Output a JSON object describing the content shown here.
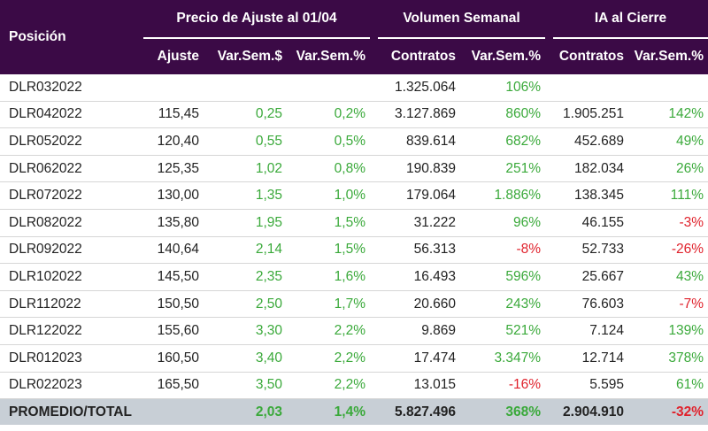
{
  "header": {
    "posicion": "Posición",
    "group_precio": "Precio de Ajuste al 01/04",
    "group_volumen": "Volumen Semanal",
    "group_ia": "IA al Cierre",
    "sub": [
      "Ajuste",
      "Var.Sem.$",
      "Var.Sem.%",
      "Contratos",
      "Var.Sem.%",
      "Contratos",
      "Var.Sem.%"
    ]
  },
  "colors": {
    "header_bg": "#3b0a46",
    "positive": "#3aa93a",
    "negative": "#e0222c",
    "total_bg": "#c8cfd6"
  },
  "rows": [
    {
      "posicion": "DLR032022",
      "ajuste": "",
      "var_usd": "",
      "var_pct": "",
      "vol_contratos": "1.325.064",
      "vol_var": "106%",
      "ia_contratos": "",
      "ia_var": ""
    },
    {
      "posicion": "DLR042022",
      "ajuste": "115,45",
      "var_usd": "0,25",
      "var_pct": "0,2%",
      "vol_contratos": "3.127.869",
      "vol_var": "860%",
      "ia_contratos": "1.905.251",
      "ia_var": "142%"
    },
    {
      "posicion": "DLR052022",
      "ajuste": "120,40",
      "var_usd": "0,55",
      "var_pct": "0,5%",
      "vol_contratos": "839.614",
      "vol_var": "682%",
      "ia_contratos": "452.689",
      "ia_var": "49%"
    },
    {
      "posicion": "DLR062022",
      "ajuste": "125,35",
      "var_usd": "1,02",
      "var_pct": "0,8%",
      "vol_contratos": "190.839",
      "vol_var": "251%",
      "ia_contratos": "182.034",
      "ia_var": "26%"
    },
    {
      "posicion": "DLR072022",
      "ajuste": "130,00",
      "var_usd": "1,35",
      "var_pct": "1,0%",
      "vol_contratos": "179.064",
      "vol_var": "1.886%",
      "ia_contratos": "138.345",
      "ia_var": "111%"
    },
    {
      "posicion": "DLR082022",
      "ajuste": "135,80",
      "var_usd": "1,95",
      "var_pct": "1,5%",
      "vol_contratos": "31.222",
      "vol_var": "96%",
      "ia_contratos": "46.155",
      "ia_var": "-3%"
    },
    {
      "posicion": "DLR092022",
      "ajuste": "140,64",
      "var_usd": "2,14",
      "var_pct": "1,5%",
      "vol_contratos": "56.313",
      "vol_var": "-8%",
      "ia_contratos": "52.733",
      "ia_var": "-26%"
    },
    {
      "posicion": "DLR102022",
      "ajuste": "145,50",
      "var_usd": "2,35",
      "var_pct": "1,6%",
      "vol_contratos": "16.493",
      "vol_var": "596%",
      "ia_contratos": "25.667",
      "ia_var": "43%"
    },
    {
      "posicion": "DLR112022",
      "ajuste": "150,50",
      "var_usd": "2,50",
      "var_pct": "1,7%",
      "vol_contratos": "20.660",
      "vol_var": "243%",
      "ia_contratos": "76.603",
      "ia_var": "-7%"
    },
    {
      "posicion": "DLR122022",
      "ajuste": "155,60",
      "var_usd": "3,30",
      "var_pct": "2,2%",
      "vol_contratos": "9.869",
      "vol_var": "521%",
      "ia_contratos": "7.124",
      "ia_var": "139%"
    },
    {
      "posicion": "DLR012023",
      "ajuste": "160,50",
      "var_usd": "3,40",
      "var_pct": "2,2%",
      "vol_contratos": "17.474",
      "vol_var": "3.347%",
      "ia_contratos": "12.714",
      "ia_var": "378%"
    },
    {
      "posicion": "DLR022023",
      "ajuste": "165,50",
      "var_usd": "3,50",
      "var_pct": "2,2%",
      "vol_contratos": "13.015",
      "vol_var": "-16%",
      "ia_contratos": "5.595",
      "ia_var": "61%"
    }
  ],
  "total": {
    "posicion": "PROMEDIO/TOTAL",
    "ajuste": "",
    "var_usd": "2,03",
    "var_pct": "1,4%",
    "vol_contratos": "5.827.496",
    "vol_var": "368%",
    "ia_contratos": "2.904.910",
    "ia_var": "-32%"
  }
}
